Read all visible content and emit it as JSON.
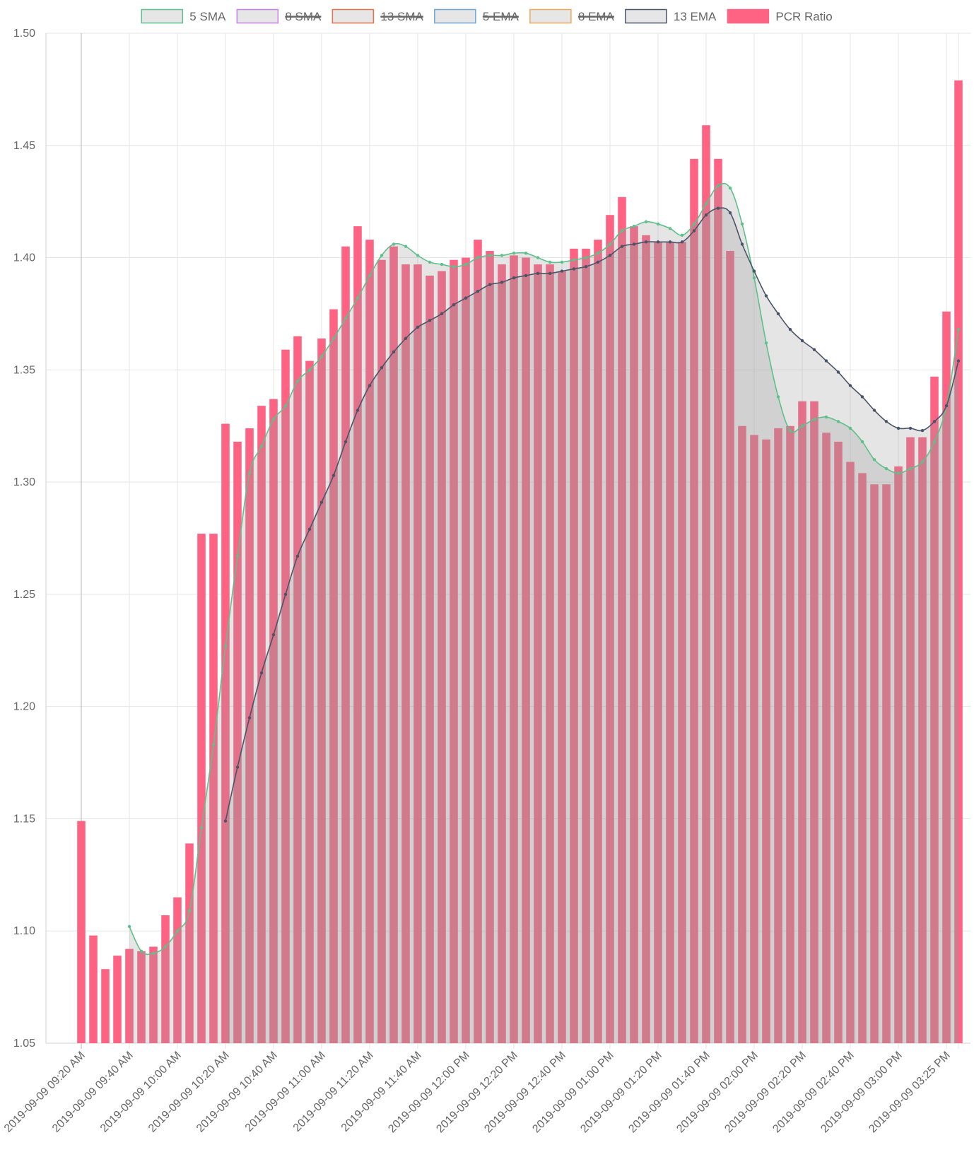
{
  "colors": {
    "pcr_bar": "#ff6384",
    "pcr_bar_overlay": "#c85a71",
    "sma5": "#5ec08a",
    "sma8": "#c77dea",
    "sma13": "#e8704a",
    "ema5": "#6ea2d4",
    "ema8": "#f2a859",
    "ema13": "#4a5468",
    "area_fill": "rgba(150,150,150,0.25)",
    "grid": "#e5e5e5",
    "axis_text": "#666666"
  },
  "legend": [
    {
      "key": "sma5",
      "label": "5 SMA",
      "hidden": false
    },
    {
      "key": "sma8",
      "label": "8 SMA",
      "hidden": true
    },
    {
      "key": "sma13",
      "label": "13 SMA",
      "hidden": true
    },
    {
      "key": "ema5",
      "label": "5 EMA",
      "hidden": true
    },
    {
      "key": "ema8",
      "label": "8 EMA",
      "hidden": true
    },
    {
      "key": "ema13",
      "label": "13 EMA",
      "hidden": false
    },
    {
      "key": "pcr",
      "label": "PCR Ratio",
      "hidden": false
    }
  ],
  "chart_data": {
    "type": "bar",
    "title": "",
    "xlabel": "",
    "ylabel": "",
    "ylim": [
      1.05,
      1.5
    ],
    "yticks": [
      1.05,
      1.1,
      1.15,
      1.2,
      1.25,
      1.3,
      1.35,
      1.4,
      1.45,
      1.5
    ],
    "grid": true,
    "legend_position": "top",
    "time_axis": {
      "start": "2019-09-09 09:20 AM",
      "end": "2019-09-09 03:25 PM",
      "interval_minutes": 5
    },
    "x_tick_labels": [
      "2019-09-09 09:20 AM",
      "2019-09-09 09:40 AM",
      "2019-09-09 10:00 AM",
      "2019-09-09 10:20 AM",
      "2019-09-09 10:40 AM",
      "2019-09-09 11:00 AM",
      "2019-09-09 11:20 AM",
      "2019-09-09 11:40 AM",
      "2019-09-09 12:00 PM",
      "2019-09-09 12:20 PM",
      "2019-09-09 12:40 PM",
      "2019-09-09 01:00 PM",
      "2019-09-09 01:20 PM",
      "2019-09-09 01:40 PM",
      "2019-09-09 02:00 PM",
      "2019-09-09 02:20 PM",
      "2019-09-09 02:40 PM",
      "2019-09-09 03:00 PM",
      "2019-09-09 03:25 PM"
    ],
    "series": [
      {
        "name": "PCR Ratio",
        "type": "bar",
        "values": [
          1.149,
          1.098,
          1.083,
          1.089,
          1.092,
          1.091,
          1.093,
          1.107,
          1.115,
          1.139,
          1.277,
          1.277,
          1.326,
          1.318,
          1.324,
          1.334,
          1.337,
          1.359,
          1.365,
          1.354,
          1.364,
          1.377,
          1.405,
          1.414,
          1.408,
          1.399,
          1.405,
          1.397,
          1.397,
          1.392,
          1.394,
          1.399,
          1.4,
          1.408,
          1.403,
          1.397,
          1.401,
          1.4,
          1.397,
          1.397,
          1.394,
          1.404,
          1.404,
          1.408,
          1.419,
          1.427,
          1.414,
          1.41,
          1.407,
          1.407,
          1.407,
          1.444,
          1.459,
          1.444,
          1.403,
          1.325,
          1.321,
          1.319,
          1.324,
          1.325,
          1.336,
          1.336,
          1.322,
          1.318,
          1.309,
          1.304,
          1.299,
          1.299,
          1.307,
          1.32,
          1.32,
          1.347,
          1.376,
          1.479
        ]
      },
      {
        "name": "5 SMA",
        "type": "line",
        "values": [
          null,
          null,
          null,
          null,
          1.102,
          1.091,
          1.09,
          1.093,
          1.1,
          1.109,
          1.146,
          1.183,
          1.227,
          1.267,
          1.304,
          1.316,
          1.328,
          1.334,
          1.345,
          1.35,
          1.356,
          1.364,
          1.373,
          1.382,
          1.392,
          1.401,
          1.406,
          1.405,
          1.401,
          1.398,
          1.397,
          1.396,
          1.397,
          1.4,
          1.401,
          1.401,
          1.402,
          1.402,
          1.4,
          1.398,
          1.398,
          1.399,
          1.4,
          1.402,
          1.406,
          1.412,
          1.414,
          1.416,
          1.415,
          1.413,
          1.41,
          1.415,
          1.424,
          1.432,
          1.431,
          1.415,
          1.391,
          1.362,
          1.338,
          1.323,
          1.325,
          1.328,
          1.329,
          1.327,
          1.324,
          1.318,
          1.31,
          1.306,
          1.304,
          1.306,
          1.309,
          1.318,
          1.334,
          1.368
        ]
      },
      {
        "name": "13 EMA",
        "type": "line",
        "values": [
          null,
          null,
          null,
          null,
          null,
          null,
          null,
          null,
          null,
          null,
          null,
          null,
          1.149,
          1.173,
          1.195,
          1.215,
          1.232,
          1.25,
          1.267,
          1.279,
          1.291,
          1.303,
          1.318,
          1.332,
          1.343,
          1.351,
          1.358,
          1.364,
          1.369,
          1.372,
          1.375,
          1.379,
          1.382,
          1.385,
          1.388,
          1.389,
          1.391,
          1.392,
          1.393,
          1.393,
          1.394,
          1.395,
          1.396,
          1.398,
          1.401,
          1.405,
          1.406,
          1.407,
          1.407,
          1.407,
          1.407,
          1.412,
          1.419,
          1.422,
          1.42,
          1.406,
          1.394,
          1.383,
          1.375,
          1.368,
          1.363,
          1.359,
          1.354,
          1.349,
          1.343,
          1.338,
          1.332,
          1.327,
          1.324,
          1.324,
          1.323,
          1.327,
          1.334,
          1.354
        ]
      }
    ]
  }
}
